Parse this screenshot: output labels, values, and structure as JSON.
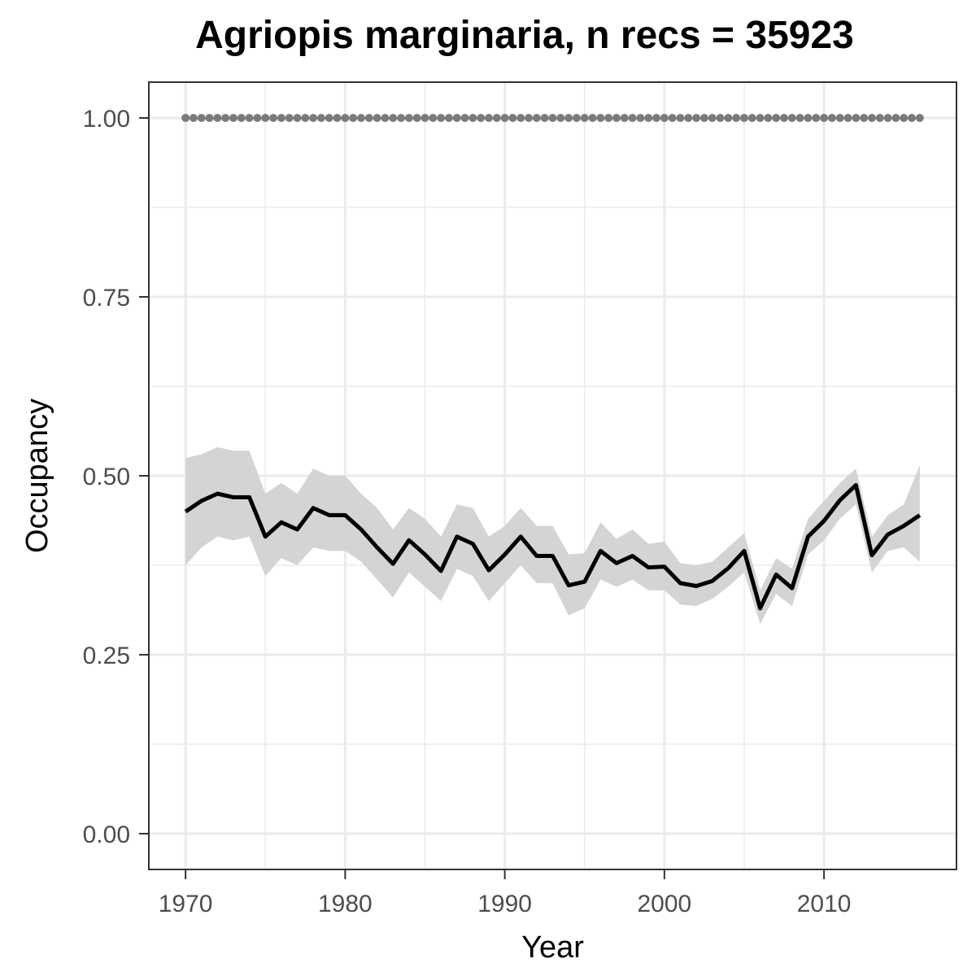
{
  "chart_data": {
    "type": "line",
    "title": "Agriopis marginaria, n recs = 35923",
    "xlabel": "Year",
    "ylabel": "Occupancy",
    "xlim": [
      1967.7,
      2018.3
    ],
    "ylim": [
      -0.05,
      1.05
    ],
    "x_ticks": [
      1970,
      1980,
      1990,
      2000,
      2010
    ],
    "x_tick_labels": [
      "1970",
      "1980",
      "1990",
      "2000",
      "2010"
    ],
    "y_ticks": [
      0,
      0.25,
      0.5,
      0.75,
      1.0
    ],
    "y_tick_labels": [
      "0.00",
      "0.25",
      "0.50",
      "0.75",
      "1.00"
    ],
    "grid": true,
    "x": [
      1970,
      1971,
      1972,
      1973,
      1974,
      1975,
      1976,
      1977,
      1978,
      1979,
      1980,
      1981,
      1982,
      1983,
      1984,
      1985,
      1986,
      1987,
      1988,
      1989,
      1990,
      1991,
      1992,
      1993,
      1994,
      1995,
      1996,
      1997,
      1998,
      1999,
      2000,
      2001,
      2002,
      2003,
      2004,
      2005,
      2006,
      2007,
      2008,
      2009,
      2010,
      2011,
      2012,
      2013,
      2014,
      2015,
      2016
    ],
    "series": [
      {
        "values": [
          0.45,
          0.465,
          0.475,
          0.47,
          0.47,
          0.415,
          0.435,
          0.425,
          0.455,
          0.445,
          0.445,
          0.425,
          0.4,
          0.377,
          0.41,
          0.39,
          0.367,
          0.415,
          0.405,
          0.368,
          0.39,
          0.415,
          0.388,
          0.388,
          0.347,
          0.352,
          0.395,
          0.378,
          0.388,
          0.372,
          0.373,
          0.35,
          0.346,
          0.353,
          0.371,
          0.395,
          0.315,
          0.362,
          0.343,
          0.415,
          0.437,
          0.466,
          0.487,
          0.389,
          0.418,
          0.43,
          0.445
        ],
        "lower": [
          0.375,
          0.4,
          0.415,
          0.41,
          0.415,
          0.36,
          0.385,
          0.375,
          0.4,
          0.395,
          0.395,
          0.38,
          0.355,
          0.33,
          0.365,
          0.345,
          0.325,
          0.37,
          0.36,
          0.325,
          0.35,
          0.375,
          0.35,
          0.35,
          0.305,
          0.315,
          0.355,
          0.345,
          0.355,
          0.34,
          0.34,
          0.32,
          0.318,
          0.328,
          0.345,
          0.365,
          0.293,
          0.335,
          0.318,
          0.39,
          0.41,
          0.44,
          0.46,
          0.365,
          0.395,
          0.4,
          0.38
        ],
        "upper": [
          0.525,
          0.53,
          0.54,
          0.535,
          0.535,
          0.475,
          0.49,
          0.475,
          0.51,
          0.5,
          0.5,
          0.475,
          0.455,
          0.425,
          0.455,
          0.44,
          0.415,
          0.46,
          0.455,
          0.415,
          0.43,
          0.455,
          0.43,
          0.43,
          0.39,
          0.392,
          0.435,
          0.412,
          0.425,
          0.405,
          0.408,
          0.378,
          0.375,
          0.38,
          0.4,
          0.42,
          0.34,
          0.385,
          0.37,
          0.44,
          0.465,
          0.49,
          0.51,
          0.415,
          0.445,
          0.46,
          0.515
        ]
      },
      {
        "style": "dotted",
        "values": [
          1,
          1,
          1,
          1,
          1,
          1,
          1,
          1,
          1,
          1,
          1,
          1,
          1,
          1,
          1,
          1,
          1,
          1,
          1,
          1,
          1,
          1,
          1,
          1,
          1,
          1,
          1,
          1,
          1,
          1,
          1,
          1,
          1,
          1,
          1,
          1,
          1,
          1,
          1,
          1,
          1,
          1,
          1,
          1,
          1,
          1,
          1
        ]
      }
    ],
    "colors": {
      "line": "#000000",
      "band": "#d4d4d4",
      "dots": "#7a7a7a",
      "grid": "#ebebeb",
      "frame": "#333333",
      "tick_label": "#4d4d4d"
    }
  }
}
